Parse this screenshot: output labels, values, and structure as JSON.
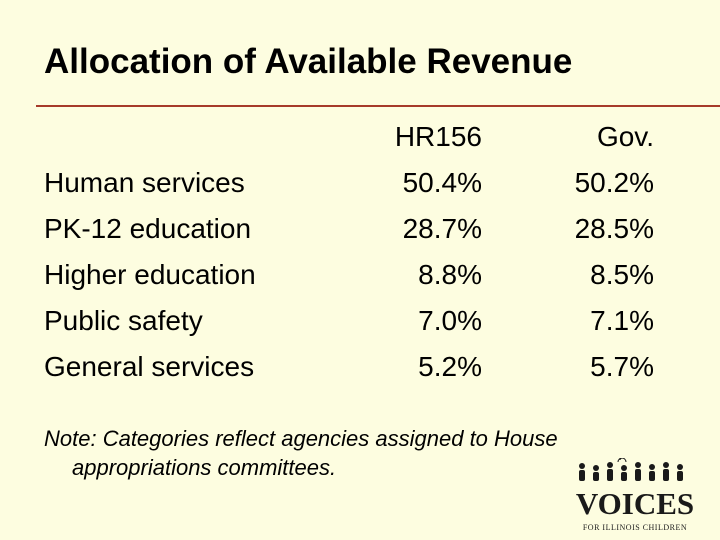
{
  "slide": {
    "title": "Allocation of Available Revenue",
    "table": {
      "columns": [
        "",
        "HR156",
        "Gov."
      ],
      "rows": [
        {
          "category": "Human services",
          "hr156": "50.4%",
          "gov": "50.2%"
        },
        {
          "category": "PK-12 education",
          "hr156": "28.7%",
          "gov": "28.5%"
        },
        {
          "category": "Higher education",
          "hr156": "8.8%",
          "gov": "8.5%"
        },
        {
          "category": "Public safety",
          "hr156": "7.0%",
          "gov": "7.1%"
        },
        {
          "category": "General services",
          "hr156": "5.2%",
          "gov": "5.7%"
        }
      ]
    },
    "note": {
      "line1": "Note:  Categories reflect agencies assigned to House",
      "line2": "appropriations committees."
    },
    "logo": {
      "word": "VOICES",
      "tagline": "FOR ILLINOIS CHILDREN",
      "color": "#1a1a1a"
    }
  }
}
